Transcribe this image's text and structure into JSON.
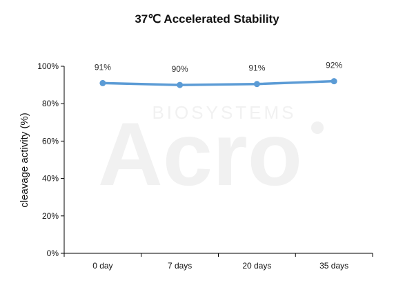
{
  "chart_data": {
    "type": "line",
    "title": "37℃ Accelerated Stability",
    "ylabel": "cleavage activity (%)",
    "xlabel": "",
    "categories": [
      "0 day",
      "7 days",
      "20 days",
      "35 days"
    ],
    "series": [
      {
        "values": [
          91,
          90,
          90.5,
          92
        ],
        "labels": [
          "91%",
          "90%",
          "91%",
          "92%"
        ],
        "color": "#5b9bd5"
      }
    ],
    "ylim": [
      0,
      100
    ],
    "yticks": [
      0,
      20,
      40,
      60,
      80,
      100
    ],
    "ytick_labels": [
      "0%",
      "20%",
      "40%",
      "60%",
      "80%",
      "100%"
    ],
    "grid": false,
    "legend": "none"
  },
  "watermark": {
    "top_text": "BIOSYSTEMS",
    "main_text": "Acro"
  }
}
